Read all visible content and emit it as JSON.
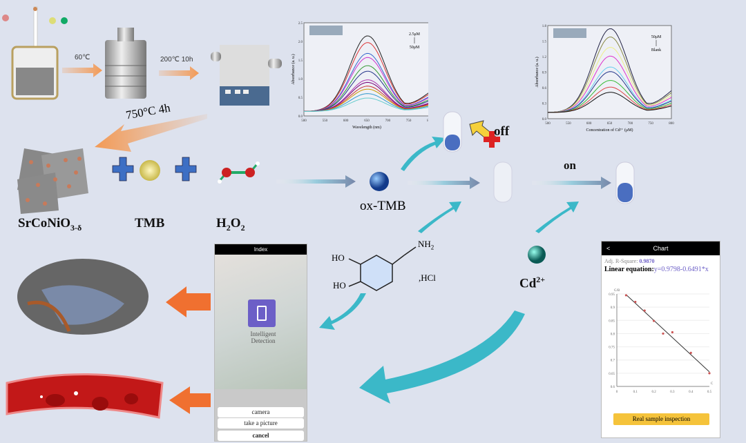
{
  "colors": {
    "background": "#dde2ee",
    "arrow_orange": "#f39a55",
    "arrow_teal": "#3bb8c8",
    "plus_blue": "#3d6fc4",
    "button_yellow": "#f5c33b",
    "accent_purple": "#6c5fc7"
  },
  "synthesis": {
    "step1": "60℃",
    "step2": "200℃ 10h",
    "step3": "750°C 4h"
  },
  "reagents": {
    "catalyst": "SrCoNiO",
    "catalyst_sub": "3-δ",
    "tmb": "TMB",
    "h2o2": "H",
    "h2o2_sub1": "2",
    "h2o2_o": "O",
    "h2o2_sub2": "2"
  },
  "products": {
    "oxtmb": "ox-TMB",
    "off": "off",
    "on": "on",
    "cd": "Cd",
    "cd_sup": "2+",
    "hcl": ",HCl",
    "ho1": "HO",
    "ho2": "HO",
    "nh2": "NH",
    "nh2_sub": "2"
  },
  "chart_data": [
    {
      "type": "line",
      "xlabel": "Wavelength (nm)",
      "ylabel": "Absorbance (a. u.)",
      "xlim": [
        500,
        800
      ],
      "ylim": [
        0,
        2.5
      ],
      "xticks": [
        "500",
        "550",
        "600",
        "650",
        "700",
        "750",
        "800"
      ],
      "yticks": [
        "0.0",
        "0.5",
        "1.0",
        "1.5",
        "2.0",
        "2.5"
      ],
      "annotation_top": "2.5μM",
      "annotation_bottom": "50μM",
      "peak_wavelength": 652,
      "series_peaks": [
        2.15,
        1.97,
        1.68,
        1.57,
        1.35,
        1.2,
        0.97,
        0.9,
        0.8,
        0.72,
        0.6,
        0.48
      ],
      "colors": [
        "#222",
        "#d33",
        "#36c",
        "#c3c",
        "#393",
        "#238",
        "#a3a",
        "#707",
        "#c33",
        "#c90",
        "#39c",
        "#6cc"
      ]
    },
    {
      "type": "line",
      "xlabel": "Concentration of Cd²⁺ (μM)",
      "ylabel": "Absorbance (a. u.)",
      "xlim": [
        500,
        800
      ],
      "ylim": [
        0,
        1.8
      ],
      "xticks": [
        "500",
        "550",
        "600",
        "650",
        "700",
        "750",
        "800"
      ],
      "yticks": [
        "0.0",
        "0.3",
        "0.6",
        "0.9",
        "1.2",
        "1.5",
        "1.8"
      ],
      "annotation_top": "50μM",
      "annotation_bottom": "Blank",
      "peak_wavelength": 652,
      "series_peaks": [
        1.74,
        1.58,
        1.38,
        1.21,
        1.0,
        0.91,
        0.74,
        0.61,
        0.51
      ],
      "colors": [
        "#224",
        "#884",
        "#ee8",
        "#d3c",
        "#6ce",
        "#238",
        "#3b3",
        "#d44",
        "#111"
      ]
    },
    {
      "type": "scatter",
      "ylabel": "G/B",
      "xlabel": "C",
      "xlim": [
        0,
        0.5
      ],
      "ylim": [
        0.6,
        0.95
      ],
      "xticks": [
        "0",
        "0.1",
        "0.2",
        "0.3",
        "0.4",
        "0.5"
      ],
      "yticks": [
        "0.6",
        "0.65",
        "0.7",
        "0.75",
        "0.8",
        "0.85",
        "0.9",
        "0.95"
      ],
      "points": [
        [
          0.05,
          0.945
        ],
        [
          0.1,
          0.92
        ],
        [
          0.15,
          0.887
        ],
        [
          0.2,
          0.848
        ],
        [
          0.25,
          0.8
        ],
        [
          0.3,
          0.805
        ],
        [
          0.4,
          0.727
        ],
        [
          0.5,
          0.65
        ]
      ],
      "fit": {
        "intercept": 0.9798,
        "slope": -0.6491
      }
    }
  ],
  "app_index": {
    "title": "Index",
    "tile": "Intelligent Detection",
    "options": [
      "camera",
      "take a picture"
    ],
    "cancel": "cancel"
  },
  "app_chart": {
    "title": "Chart",
    "back": "<",
    "r2_label": "Adj. R-Square:",
    "r2_value": "0.9870",
    "eq_label": "Linear equation:",
    "eq_value": "y=0.9798-0.6491*x",
    "button": "Real sample inspection"
  }
}
